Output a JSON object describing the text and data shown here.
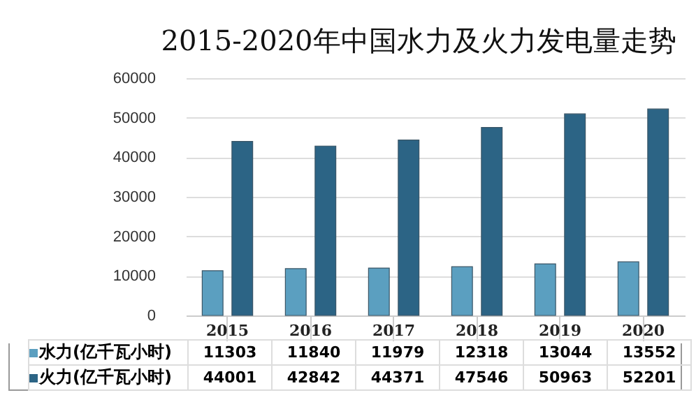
{
  "chart_data": {
    "type": "bar",
    "title": "2015-2020年中国水力及火力发电量走势",
    "categories": [
      "2015",
      "2016",
      "2017",
      "2018",
      "2019",
      "2020"
    ],
    "series": [
      {
        "name": "水力(亿千瓦小时)",
        "color": "#5b9fc0",
        "values": [
          11303,
          11840,
          11979,
          12318,
          13044,
          13552
        ]
      },
      {
        "name": "火力(亿千瓦小时)",
        "color": "#2c6485",
        "values": [
          44001,
          42842,
          44371,
          47546,
          50963,
          52201
        ]
      }
    ],
    "ylim": [
      0,
      60000
    ],
    "yticks": [
      0,
      10000,
      20000,
      30000,
      40000,
      50000,
      60000
    ],
    "grid": "y",
    "legend": "bottom left",
    "data_labels": true
  }
}
